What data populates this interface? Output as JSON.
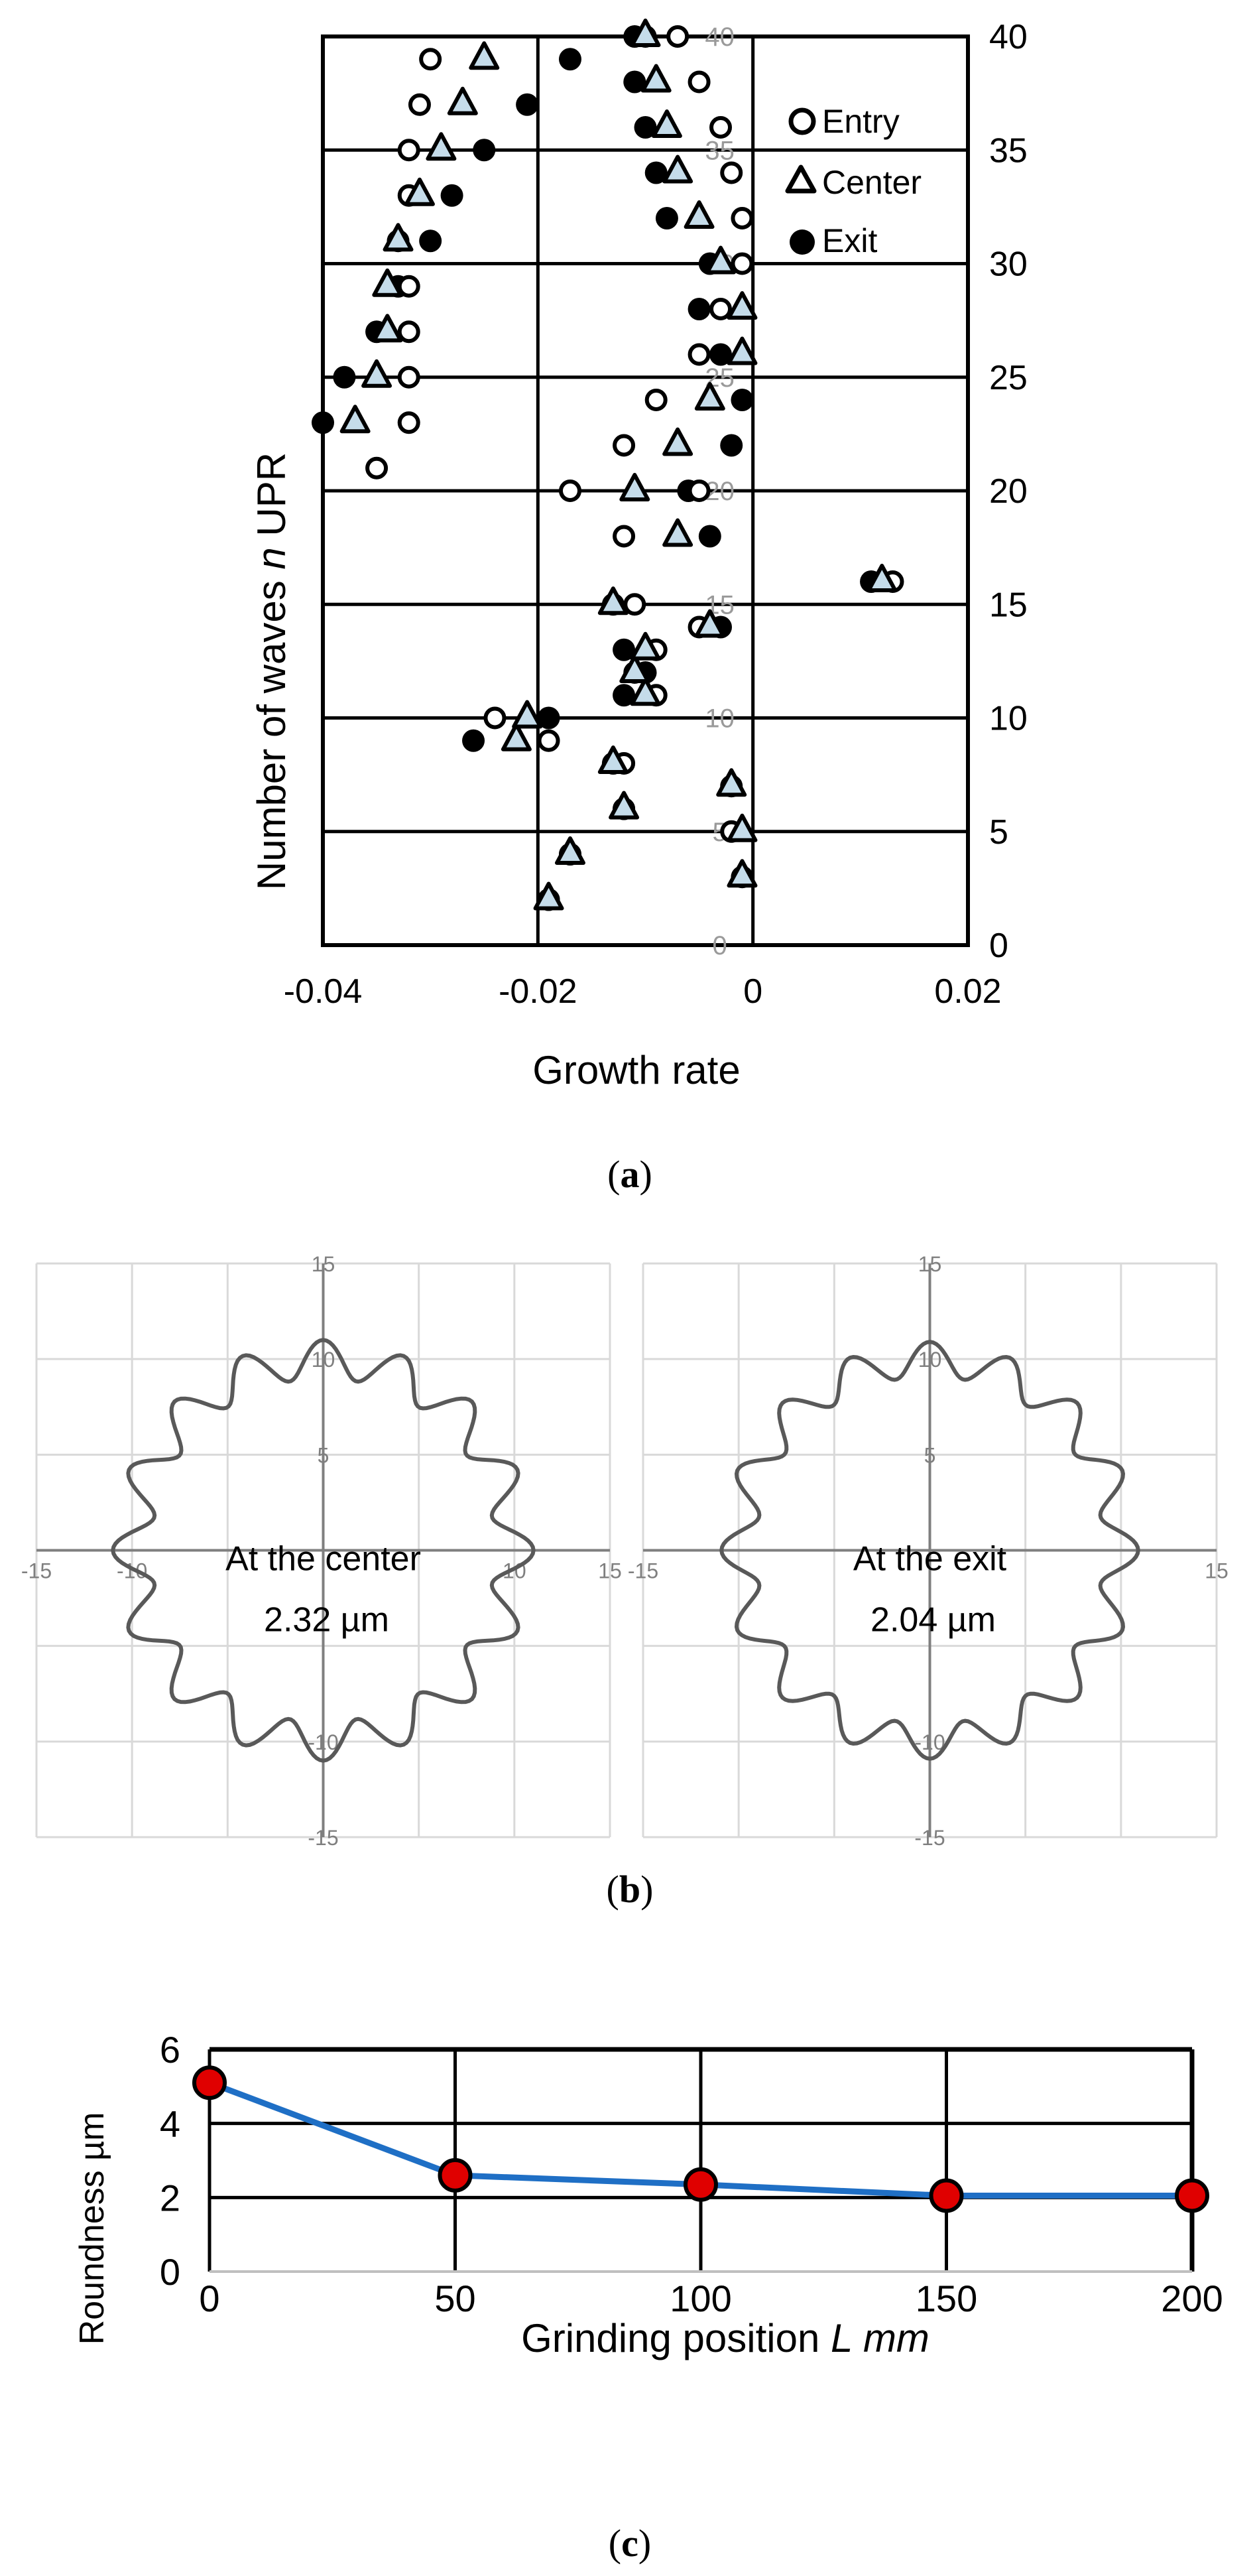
{
  "panel_labels": {
    "a": "(a)",
    "b": "(b)",
    "c": "(c)"
  },
  "panel_label_letters": {
    "a": "a",
    "b": "b",
    "c": "c"
  },
  "chart_data": [
    {
      "type": "scatter",
      "xlabel": "Growth rate",
      "ylabel_prefix": "Number of waves ",
      "ylabel_italic": "n",
      "ylabel_suffix": " UPR",
      "xlim": [
        -0.04,
        0.02
      ],
      "ylim": [
        0,
        40
      ],
      "x_tick_labels": [
        "-0.04",
        "-0.02",
        "0",
        "0.02"
      ],
      "y_tick_values": [
        0,
        5,
        10,
        15,
        20,
        25,
        30,
        35,
        40
      ],
      "y_tick_labels": [
        "0",
        "5",
        "10",
        "15",
        "20",
        "25",
        "30",
        "35",
        "40"
      ],
      "inner_tick_labels": [
        "0",
        "5",
        "10",
        "15",
        "20",
        "25",
        "30",
        "35",
        "40"
      ],
      "grid": true,
      "legend": "top-right",
      "colors": {
        "center_fill": "#c5dcea",
        "exit_fill": "#000000",
        "entry_fill": "#ffffff"
      },
      "series": [
        {
          "name": "Entry",
          "marker": "circle-open",
          "points": [
            [
              -0.019,
              2
            ],
            [
              -0.001,
              3
            ],
            [
              -0.017,
              4
            ],
            [
              -0.002,
              5
            ],
            [
              -0.012,
              6
            ],
            [
              -0.002,
              7
            ],
            [
              -0.012,
              8
            ],
            [
              -0.019,
              9
            ],
            [
              -0.024,
              10
            ],
            [
              -0.009,
              11
            ],
            [
              -0.011,
              12
            ],
            [
              -0.009,
              13
            ],
            [
              -0.005,
              14
            ],
            [
              -0.011,
              15
            ],
            [
              0.013,
              16
            ],
            [
              -0.012,
              18
            ],
            [
              -0.017,
              20
            ],
            [
              -0.005,
              20
            ],
            [
              -0.035,
              21
            ],
            [
              -0.012,
              22
            ],
            [
              -0.032,
              23
            ],
            [
              -0.009,
              24
            ],
            [
              -0.032,
              25
            ],
            [
              -0.005,
              26
            ],
            [
              -0.032,
              27
            ],
            [
              -0.003,
              28
            ],
            [
              -0.032,
              29
            ],
            [
              -0.001,
              30
            ],
            [
              -0.033,
              31
            ],
            [
              -0.001,
              32
            ],
            [
              -0.032,
              33
            ],
            [
              -0.002,
              34
            ],
            [
              -0.032,
              35
            ],
            [
              -0.003,
              36
            ],
            [
              -0.031,
              37
            ],
            [
              -0.005,
              38
            ],
            [
              -0.03,
              39
            ],
            [
              -0.01,
              40
            ],
            [
              -0.007,
              40
            ]
          ]
        },
        {
          "name": "Center",
          "marker": "triangle-open",
          "points": [
            [
              -0.019,
              2
            ],
            [
              -0.001,
              3
            ],
            [
              -0.017,
              4
            ],
            [
              -0.001,
              5
            ],
            [
              -0.012,
              6
            ],
            [
              -0.002,
              7
            ],
            [
              -0.013,
              8
            ],
            [
              -0.022,
              9
            ],
            [
              -0.021,
              10
            ],
            [
              -0.01,
              11
            ],
            [
              -0.011,
              12
            ],
            [
              -0.01,
              13
            ],
            [
              -0.004,
              14
            ],
            [
              -0.013,
              15
            ],
            [
              0.012,
              16
            ],
            [
              -0.007,
              18
            ],
            [
              -0.011,
              20
            ],
            [
              -0.007,
              22
            ],
            [
              -0.037,
              23
            ],
            [
              -0.004,
              24
            ],
            [
              -0.035,
              25
            ],
            [
              -0.001,
              26
            ],
            [
              -0.034,
              27
            ],
            [
              -0.001,
              28
            ],
            [
              -0.034,
              29
            ],
            [
              -0.003,
              30
            ],
            [
              -0.033,
              31
            ],
            [
              -0.005,
              32
            ],
            [
              -0.031,
              33
            ],
            [
              -0.007,
              34
            ],
            [
              -0.029,
              35
            ],
            [
              -0.008,
              36
            ],
            [
              -0.027,
              37
            ],
            [
              -0.009,
              38
            ],
            [
              -0.025,
              39
            ],
            [
              -0.01,
              40
            ]
          ]
        },
        {
          "name": "Exit",
          "marker": "circle-filled",
          "points": [
            [
              -0.019,
              2
            ],
            [
              -0.017,
              4
            ],
            [
              -0.012,
              6
            ],
            [
              -0.013,
              8
            ],
            [
              -0.026,
              9
            ],
            [
              -0.019,
              10
            ],
            [
              -0.012,
              11
            ],
            [
              -0.01,
              12
            ],
            [
              -0.012,
              13
            ],
            [
              -0.003,
              14
            ],
            [
              -0.013,
              15
            ],
            [
              0.011,
              16
            ],
            [
              -0.004,
              18
            ],
            [
              -0.006,
              20
            ],
            [
              -0.04,
              23
            ],
            [
              -0.002,
              22
            ],
            [
              -0.038,
              25
            ],
            [
              -0.001,
              24
            ],
            [
              -0.035,
              27
            ],
            [
              -0.003,
              26
            ],
            [
              -0.033,
              29
            ],
            [
              -0.005,
              28
            ],
            [
              -0.03,
              31
            ],
            [
              -0.004,
              30
            ],
            [
              -0.028,
              33
            ],
            [
              -0.008,
              32
            ],
            [
              -0.025,
              35
            ],
            [
              -0.009,
              34
            ],
            [
              -0.021,
              37
            ],
            [
              -0.01,
              36
            ],
            [
              -0.017,
              39
            ],
            [
              -0.011,
              38
            ],
            [
              -0.011,
              40
            ]
          ]
        }
      ]
    },
    {
      "type": "polar-profile",
      "annotation": [
        "At the center",
        "2.32 µm"
      ],
      "xlim": [
        -15,
        15
      ],
      "ylim": [
        -15,
        15
      ],
      "x_tick_labels": [
        "-15",
        "-10",
        "10",
        "15"
      ],
      "y_tick_labels": [
        "15",
        "10",
        "5",
        "-10",
        "-15"
      ],
      "lobes": 16,
      "mean_radius": 10,
      "amplitude": 1.0
    },
    {
      "type": "polar-profile",
      "annotation": [
        "At the exit",
        "2.04 µm"
      ],
      "xlim": [
        -15,
        15
      ],
      "ylim": [
        -15,
        15
      ],
      "x_tick_labels": [
        "-15",
        "15"
      ],
      "y_tick_labels": [
        "15",
        "10",
        "5",
        "-10",
        "-15"
      ],
      "lobes": 16,
      "mean_radius": 10,
      "amplitude": 0.9
    },
    {
      "type": "line",
      "x": [
        0,
        50,
        100,
        150,
        200
      ],
      "y": [
        5.1,
        2.6,
        2.35,
        2.05,
        2.05
      ],
      "xlabel_prefix": "Grinding position ",
      "xlabel_italic": "L mm",
      "ylabel": "Roundness µm",
      "xlim": [
        0,
        200
      ],
      "ylim": [
        0,
        6
      ],
      "x_tick_labels": [
        "0",
        "50",
        "100",
        "150",
        "200"
      ],
      "y_tick_labels": [
        "0",
        "2",
        "4",
        "6"
      ],
      "grid": true,
      "colors": {
        "line": "#1f6fc5",
        "marker": "#e00000"
      }
    }
  ]
}
